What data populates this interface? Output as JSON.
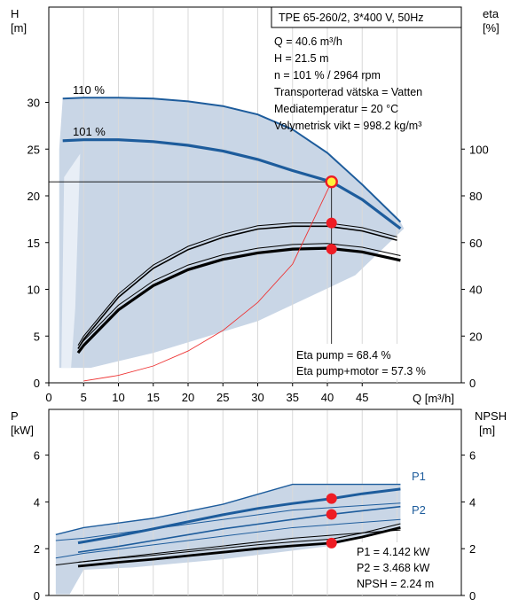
{
  "chart_data": [
    {
      "type": "line",
      "title_box": "TPE 65-260/2, 3*400 V, 50Hz",
      "xlabel": "Q [m³/h]",
      "ylabel_left": [
        "H",
        "[m]"
      ],
      "ylabel_right": [
        "eta",
        "[%]"
      ],
      "xlim": [
        0,
        55
      ],
      "ylim_left": [
        0,
        33
      ],
      "ylim_right": [
        0,
        132
      ],
      "x_ticks": [
        "0",
        "5",
        "10",
        "15",
        "20",
        "25",
        "30",
        "35",
        "40",
        "45"
      ],
      "y_ticks_left": [
        "0",
        "5",
        "10",
        "15",
        "20",
        "25",
        "30"
      ],
      "y_ticks_right": [
        "0",
        "20",
        "40",
        "60",
        "80",
        "100"
      ],
      "curve_labels": [
        "110 %",
        "101 %"
      ],
      "info_lines": [
        "Q = 40.6 m³/h",
        "H = 21.5 m",
        "n = 101 % / 2964 rpm",
        "Transporterad vätska = Vatten",
        "Mediatemperatur = 20 °C",
        "Volymetrisk vikt = 998.2 kg/m³"
      ],
      "eta_lines": [
        "Eta pump = 68.4 %",
        "Eta pump+motor = 57.3 %"
      ],
      "series": [
        {
          "name": "110 %",
          "x": [
            2,
            5,
            10,
            15,
            20,
            25,
            30,
            35,
            40,
            45,
            50.5
          ],
          "y": [
            30.4,
            30.5,
            30.5,
            30.4,
            30.1,
            29.6,
            28.7,
            27.1,
            24.6,
            21.2,
            17.2
          ]
        },
        {
          "name": "101 %",
          "x": [
            2,
            5,
            10,
            15,
            20,
            25,
            30,
            35,
            40.6,
            45,
            50.5
          ],
          "y": [
            25.9,
            26.0,
            26.0,
            25.8,
            25.4,
            24.8,
            23.9,
            22.7,
            21.5,
            19.6,
            16.5
          ]
        },
        {
          "x": [
            4.2,
            5,
            10,
            15,
            20,
            25,
            30,
            35,
            40,
            45,
            50
          ],
          "y": [
            4.0,
            5.0,
            9.5,
            12.6,
            14.6,
            15.9,
            16.8,
            17.1,
            17.1,
            16.6,
            15.6
          ]
        },
        {
          "x": [
            4.2,
            5,
            10,
            15,
            20,
            25,
            30,
            35,
            40,
            45,
            50.5
          ],
          "y": [
            3.2,
            4.0,
            7.8,
            10.4,
            12.1,
            13.2,
            13.9,
            14.3,
            14.4,
            14.0,
            13.1
          ]
        }
      ],
      "system_curve": {
        "x": [
          5,
          10,
          15,
          20,
          25,
          30,
          35,
          40.6
        ],
        "y": [
          0.2,
          0.8,
          1.8,
          3.4,
          5.6,
          8.6,
          12.7,
          21.5
        ]
      },
      "reference_line_H": 21.5,
      "duty_point": {
        "Q": 40.6,
        "H": 21.5
      },
      "points": [
        {
          "x": 40.6,
          "y": 21.5
        },
        {
          "x": 40.6,
          "y": 17.1
        },
        {
          "x": 40.6,
          "y": 14.3
        }
      ]
    },
    {
      "type": "line",
      "ylabel_left": [
        "P",
        "[kW]"
      ],
      "ylabel_right": [
        "NPSH",
        "[m]"
      ],
      "xlim": [
        0,
        55
      ],
      "ylim_left": [
        0,
        7.5
      ],
      "ylim_right": [
        0,
        7.5
      ],
      "y_ticks_left": [
        "0",
        "2",
        "4",
        "6"
      ],
      "y_ticks_right": [
        "0",
        "2",
        "4",
        "6"
      ],
      "series": [
        {
          "name": "P1",
          "x": [
            4.2,
            10,
            15,
            20,
            25,
            30,
            35,
            40.6,
            45,
            50.5
          ],
          "y": [
            2.25,
            2.55,
            2.85,
            3.15,
            3.45,
            3.72,
            3.93,
            4.142,
            4.35,
            4.55
          ]
        },
        {
          "name": "P2",
          "x": [
            4.2,
            10,
            15,
            20,
            25,
            30,
            35,
            40.6,
            45,
            50.5
          ],
          "y": [
            1.85,
            2.1,
            2.35,
            2.6,
            2.85,
            3.05,
            3.25,
            3.468,
            3.62,
            3.8
          ]
        },
        {
          "x": [
            4.2,
            10,
            15,
            20,
            25,
            30,
            35,
            40.6,
            45,
            50.5
          ],
          "y": [
            1.25,
            1.42,
            1.55,
            1.7,
            1.85,
            2.0,
            2.12,
            2.24,
            2.5,
            2.9
          ]
        }
      ],
      "points": [
        {
          "x": 40.6,
          "y": 4.142
        },
        {
          "x": 40.6,
          "y": 3.468
        },
        {
          "x": 40.6,
          "y": 2.24
        }
      ],
      "info_lines": [
        "P1 = 4.142 kW",
        "P2 = 3.468 kW",
        "NPSH = 2.24 m"
      ]
    }
  ],
  "colors": {
    "band": "#c9d6e6",
    "band_light": "#e8eef6",
    "blue": "#1d5c9c",
    "black": "#000000",
    "red": "#ee1c24",
    "yellow": "#fff23a",
    "system": "#ee3333"
  }
}
